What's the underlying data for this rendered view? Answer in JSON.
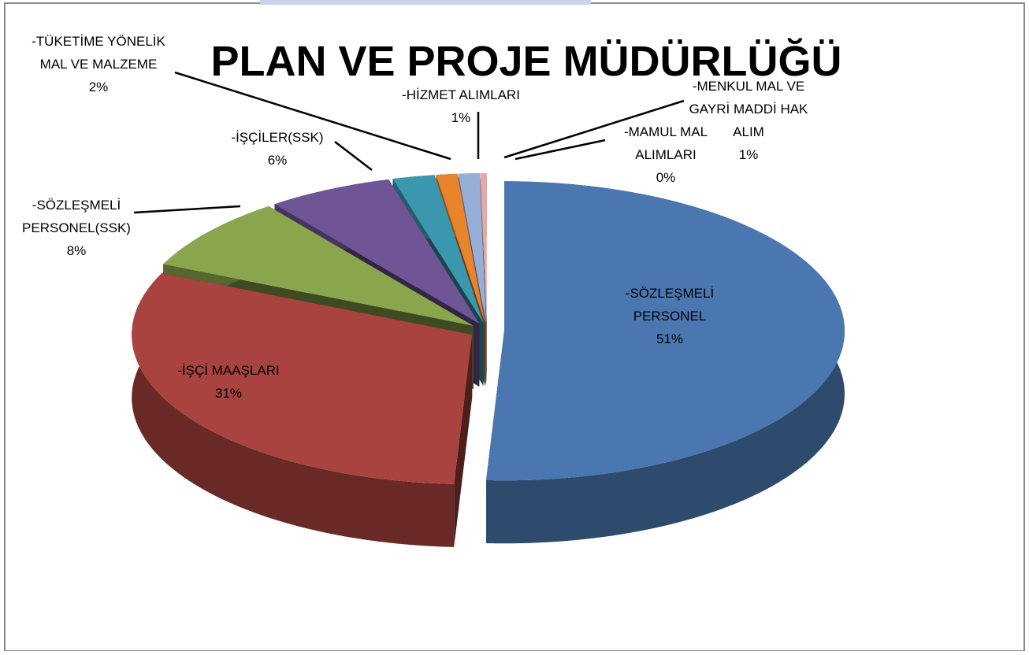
{
  "chart_data": {
    "type": "pie3d",
    "title": "PLAN VE PROJE  MÜDÜRLÜĞÜ",
    "categories": [
      "-SÖZLEŞMELİ\nPERSONEL",
      "-İŞÇİ MAAŞLARI",
      "-SÖZLEŞMELİ\nPERSONEL(SSK)",
      "-İŞÇİLER(SSK)",
      "-TÜKETİME YÖNELİK\nMAL VE MALZEME",
      "-HİZMET ALIMLARI",
      "-MENKUL MAL VE\nGAYRİ MADDİ HAK\nALIM",
      "-MAMUL MAL\nALIMLARI"
    ],
    "values": [
      51,
      31,
      8,
      6,
      2,
      1,
      1,
      0.3
    ],
    "value_labels": [
      "51%",
      "31%",
      "8%",
      "6%",
      "2%",
      "1%",
      "1%",
      "0%"
    ],
    "colors": [
      "#4a77b0",
      "#a9433f",
      "#8aa64c",
      "#6f5496",
      "#3a97ad",
      "#e8842c",
      "#97aed6",
      "#e6a9a8"
    ]
  }
}
